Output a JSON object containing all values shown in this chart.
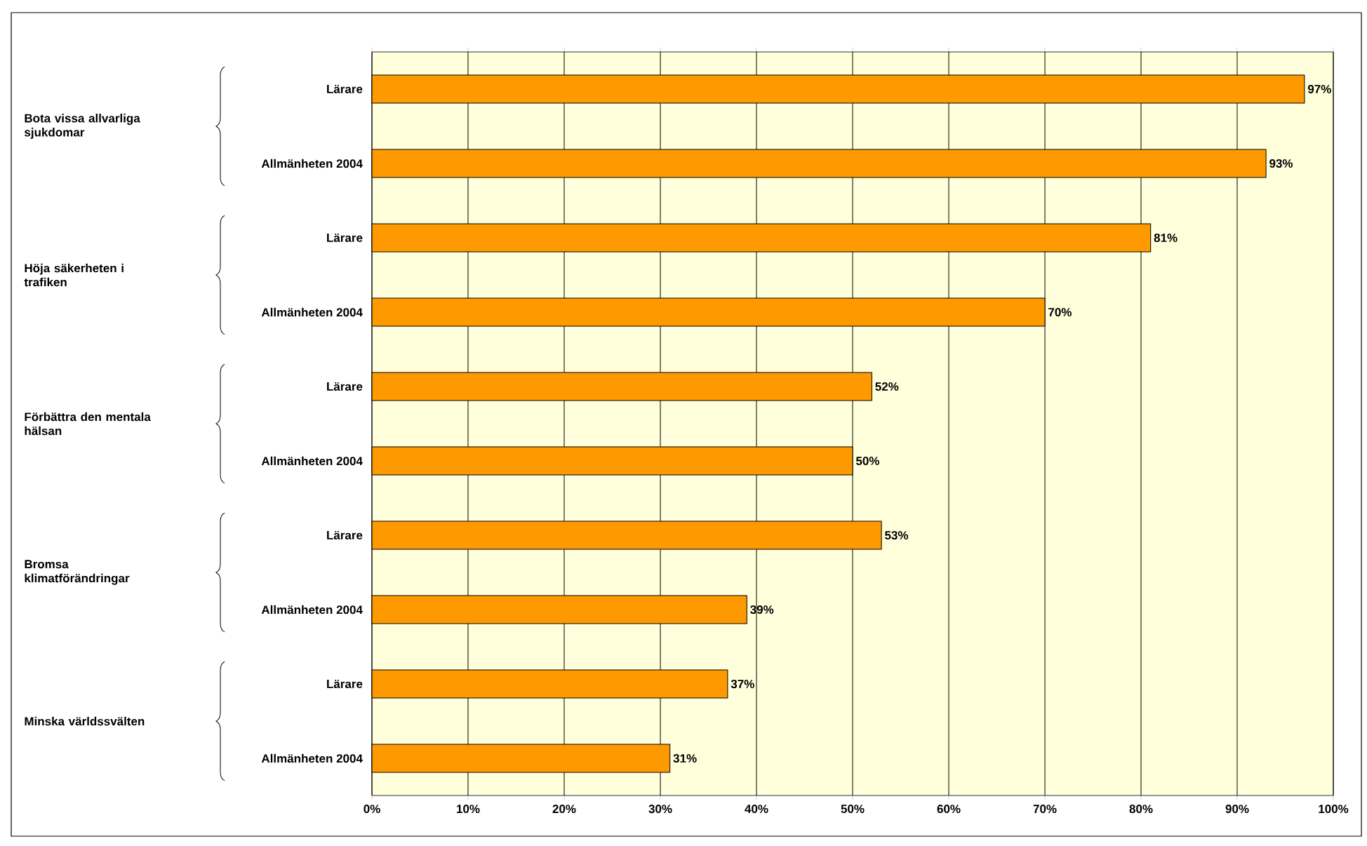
{
  "chart_data": {
    "type": "bar",
    "orientation": "horizontal",
    "categories": [
      "Lärare",
      "Allmänheten 2004",
      "Lärare",
      "Allmänheten 2004",
      "Lärare",
      "Allmänheten 2004",
      "Lärare",
      "Allmänheten 2004",
      "Lärare",
      "Allmänheten 2004"
    ],
    "values": [
      97,
      93,
      81,
      70,
      52,
      50,
      53,
      39,
      37,
      31
    ],
    "value_labels": [
      "97%",
      "93%",
      "81%",
      "70%",
      "52%",
      "50%",
      "53%",
      "39%",
      "37%",
      "31%"
    ],
    "color": "#ff9900",
    "xlim": [
      0,
      100
    ],
    "xticks": [
      {
        "value": 0,
        "label": "0%"
      },
      {
        "value": 10,
        "label": "10%"
      },
      {
        "value": 20,
        "label": "20%"
      },
      {
        "value": 30,
        "label": "30%"
      },
      {
        "value": 40,
        "label": "40%"
      },
      {
        "value": 50,
        "label": "50%"
      },
      {
        "value": 60,
        "label": "60%"
      },
      {
        "value": 70,
        "label": "70%"
      },
      {
        "value": 80,
        "label": "80%"
      },
      {
        "value": 90,
        "label": "90%"
      },
      {
        "value": 100,
        "label": "100%"
      }
    ],
    "grid": "x",
    "annotations": [
      "Bota vissa allvarliga sjukdomar",
      "Höja säkerheten i trafiken",
      "Förbättra den mentala hälsan",
      "Bromsa klimatförändringar",
      "Minska världssvälten"
    ]
  }
}
